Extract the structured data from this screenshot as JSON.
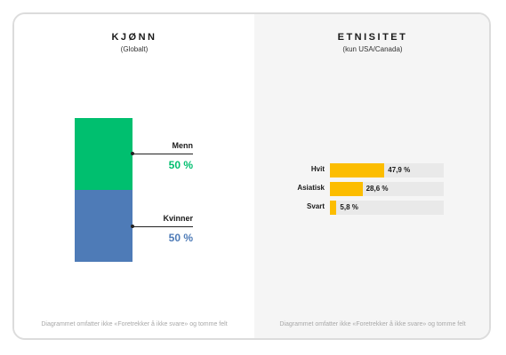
{
  "footnote": "Diagrammet omfatter ikke «Foretrekker å ikke svare» og tomme felt",
  "chart_data": [
    {
      "type": "bar",
      "stacked": true,
      "title": "KJØNN",
      "subtitle": "(Globalt)",
      "categories": [
        "Menn",
        "Kvinner"
      ],
      "values": [
        50,
        50
      ],
      "value_labels": [
        "50 %",
        "50 %"
      ],
      "colors": [
        "#00bf6f",
        "#4e7bb7"
      ],
      "unit": "%"
    },
    {
      "type": "bar",
      "orientation": "horizontal",
      "title": "ETNISITET",
      "subtitle": "(kun USA/Canada)",
      "categories": [
        "Hvit",
        "Asiatisk",
        "Svart"
      ],
      "values": [
        47.9,
        28.6,
        5.8
      ],
      "value_labels": [
        "47,9 %",
        "28,6 %",
        "5,8 %"
      ],
      "color": "#fcbd00",
      "track_color": "#e9e9e9",
      "xlim": [
        0,
        100
      ],
      "unit": "%"
    }
  ]
}
